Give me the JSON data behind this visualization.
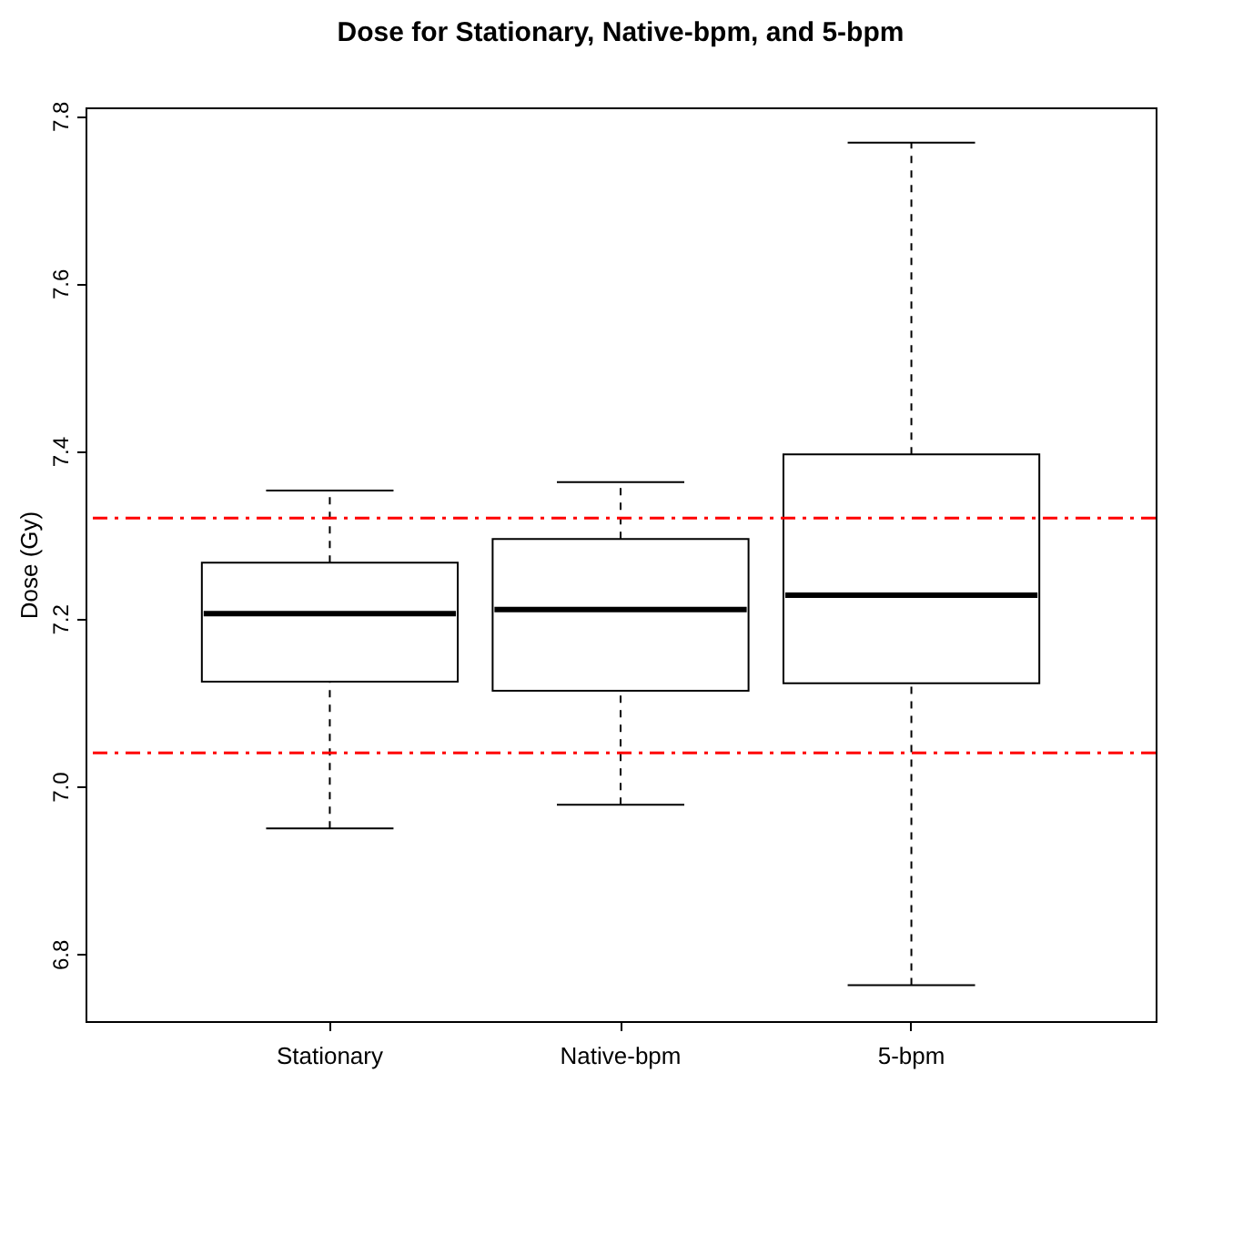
{
  "chart_data": {
    "type": "box",
    "title": "Dose for Stationary, Native-bpm, and 5-bpm",
    "ylabel": "Dose (Gy)",
    "categories": [
      "Stationary",
      "Native-bpm",
      "5-bpm"
    ],
    "boxes": [
      {
        "low": 6.95,
        "q1": 7.125,
        "median": 7.206,
        "q3": 7.267,
        "high": 7.353
      },
      {
        "low": 6.978,
        "q1": 7.114,
        "median": 7.211,
        "q3": 7.295,
        "high": 7.363
      },
      {
        "low": 6.763,
        "q1": 7.123,
        "median": 7.228,
        "q3": 7.396,
        "high": 7.768
      }
    ],
    "ylim": [
      6.72,
      7.81
    ],
    "yticks": [
      6.8,
      {
        "value": 7,
        "label": "7.0"
      },
      7.2,
      7.4,
      7.6,
      7.8
    ],
    "ref_lines": [
      {
        "axis": "y",
        "value": 7.32,
        "color": "#ff0000",
        "line_style": "dashed"
      },
      {
        "axis": "y",
        "value": 7.04,
        "color": "#ff0000",
        "line_style": "dashed"
      }
    ],
    "grid": false
  }
}
